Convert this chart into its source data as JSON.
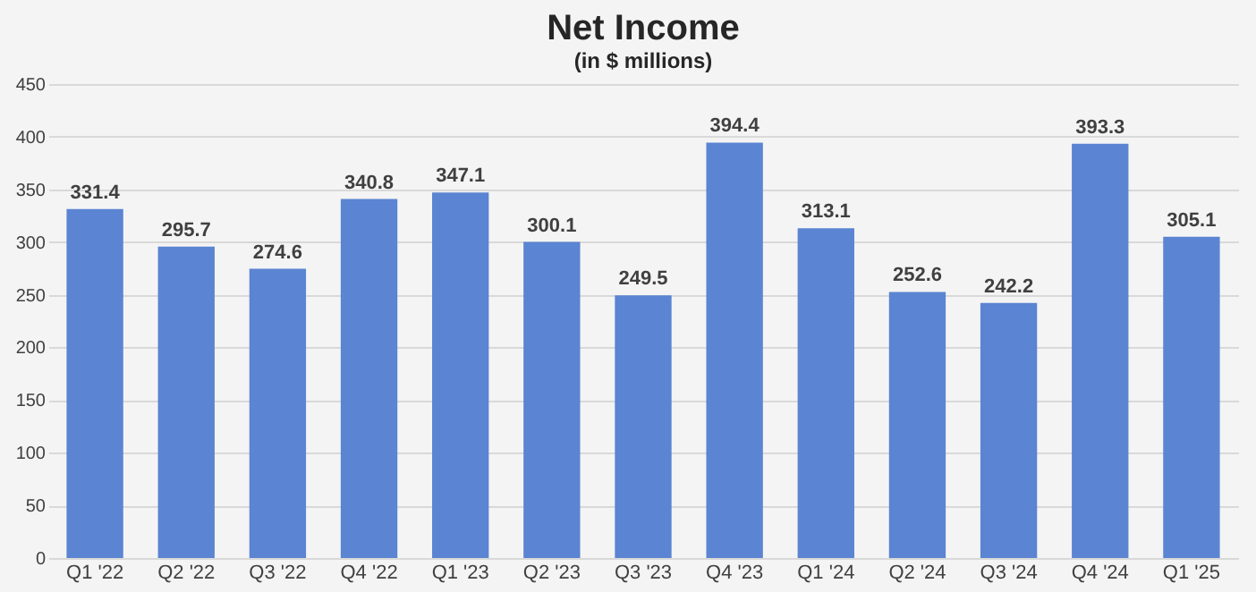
{
  "chart_data": {
    "type": "bar",
    "title": "Net Income",
    "subtitle": "(in $ millions)",
    "categories": [
      "Q1 '22",
      "Q2 '22",
      "Q3 '22",
      "Q4 '22",
      "Q1 '23",
      "Q2 '23",
      "Q3 '23",
      "Q4 '23",
      "Q1 '24",
      "Q2 '24",
      "Q3 '24",
      "Q4 '24",
      "Q1 '25"
    ],
    "values": [
      331.4,
      295.7,
      274.6,
      340.8,
      347.1,
      300.1,
      249.5,
      394.4,
      313.1,
      252.6,
      242.2,
      393.3,
      305.1
    ],
    "color": "#5b84d2",
    "ylim": [
      0,
      450
    ],
    "yticks": [
      0,
      50,
      100,
      150,
      200,
      250,
      300,
      350,
      400,
      450
    ],
    "grid": "y",
    "data_labels": true
  }
}
